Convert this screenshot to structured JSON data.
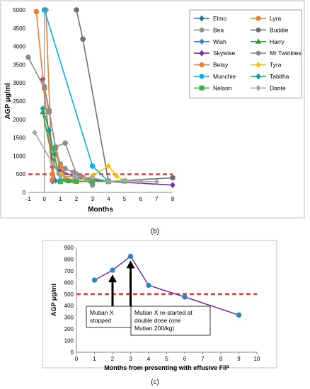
{
  "chart_data": [
    {
      "type": "line",
      "panel_label": "(b)",
      "xlabel": "Months",
      "ylabel": "AGP μg/ml",
      "xlim": [
        -1,
        8
      ],
      "ylim": [
        0,
        5000
      ],
      "x_ticks": [
        -1,
        0,
        1,
        2,
        3,
        4,
        5,
        6,
        7,
        8
      ],
      "y_ticks": [
        0,
        500,
        1000,
        1500,
        2000,
        2500,
        3000,
        3500,
        4000,
        4500,
        5000
      ],
      "grid": false,
      "legend": "top-right",
      "reference_line": {
        "y": 500,
        "color": "#e8261f",
        "style": "dashed"
      },
      "series": [
        {
          "name": "Elmo",
          "color": "#2e6da4",
          "marker": "diamond",
          "points": [
            [
              0.5,
              300
            ],
            [
              1,
              300
            ],
            [
              4,
              300
            ]
          ]
        },
        {
          "name": "Lyra",
          "color": "#ed7d31",
          "marker": "circle",
          "points": [
            [
              0.1,
              5000
            ],
            [
              0.5,
              350
            ],
            [
              1,
              300
            ],
            [
              1.5,
              320
            ],
            [
              2,
              310
            ]
          ]
        },
        {
          "name": "Bea",
          "color": "#909090",
          "marker": "circle",
          "points": [
            [
              0,
              2900
            ],
            [
              0.3,
              2250
            ],
            [
              0.7,
              1200
            ],
            [
              1,
              780
            ],
            [
              1.3,
              650
            ],
            [
              1.8,
              550
            ],
            [
              2.4,
              420
            ],
            [
              4,
              320
            ]
          ]
        },
        {
          "name": "Buddie",
          "color": "#707070",
          "marker": "circle",
          "points": [
            [
              2,
              5000
            ],
            [
              2.4,
              4200
            ],
            [
              4,
              300
            ],
            [
              8,
              400
            ]
          ]
        },
        {
          "name": "Wish",
          "color": "#2e86c1",
          "marker": "diamond",
          "points": [
            [
              0.5,
              700
            ],
            [
              0.7,
              320
            ],
            [
              1,
              300
            ]
          ]
        },
        {
          "name": "Harry",
          "color": "#3a9d3a",
          "marker": "triangle",
          "points": [
            [
              -0.1,
              2200
            ],
            [
              0.5,
              900
            ],
            [
              1,
              350
            ],
            [
              1.5,
              310
            ]
          ]
        },
        {
          "name": "Skywise",
          "color": "#7030a0",
          "marker": "diamond",
          "points": [
            [
              -0.1,
              3100
            ],
            [
              0.5,
              700
            ],
            [
              1,
              600
            ],
            [
              2,
              400
            ],
            [
              4,
              300
            ],
            [
              8,
              200
            ]
          ]
        },
        {
          "name": "Mr Twinkles",
          "color": "#8c8c8c",
          "marker": "circle",
          "points": [
            [
              -1,
              3700
            ],
            [
              0,
              2850
            ],
            [
              0.3,
              2200
            ],
            [
              0.7,
              1250
            ],
            [
              1.3,
              1350
            ],
            [
              2,
              500
            ],
            [
              3,
              200
            ]
          ]
        },
        {
          "name": "Betsy",
          "color": "#ed7d31",
          "marker": "circle",
          "points": [
            [
              -0.5,
              4950
            ],
            [
              0.5,
              500
            ],
            [
              0.7,
              1050
            ],
            [
              1,
              700
            ],
            [
              1.3,
              350
            ],
            [
              1.8,
              320
            ]
          ]
        },
        {
          "name": "Tyra",
          "color": "#ffc000",
          "marker": "diamond",
          "points": [
            [
              1,
              500
            ],
            [
              2,
              300
            ],
            [
              3,
              450
            ],
            [
              4,
              720
            ],
            [
              4.5,
              450
            ],
            [
              5,
              300
            ]
          ]
        },
        {
          "name": "Munchie",
          "color": "#00b0f0",
          "marker": "circle",
          "points": [
            [
              0,
              5000
            ],
            [
              3,
              720
            ],
            [
              4,
              300
            ]
          ]
        },
        {
          "name": "Tabitha",
          "color": "#00a39a",
          "marker": "diamond",
          "points": [
            [
              -0.1,
              2300
            ],
            [
              0.3,
              1700
            ],
            [
              0.6,
              1050
            ],
            [
              1,
              350
            ],
            [
              2,
              320
            ]
          ]
        },
        {
          "name": "Nelson",
          "color": "#3cb44b",
          "marker": "square",
          "points": [
            [
              0.5,
              1200
            ],
            [
              1,
              300
            ],
            [
              2,
              300
            ],
            [
              3,
              310
            ],
            [
              4,
              300
            ],
            [
              5,
              310
            ]
          ]
        },
        {
          "name": "Dante",
          "color": "#a6a6a6",
          "marker": "diamond",
          "points": [
            [
              -0.6,
              1640
            ],
            [
              0.5,
              800
            ],
            [
              1,
              450
            ],
            [
              2,
              420
            ],
            [
              3,
              400
            ],
            [
              4,
              300
            ],
            [
              5,
              320
            ],
            [
              6,
              300
            ],
            [
              7,
              290
            ]
          ]
        }
      ]
    },
    {
      "type": "line",
      "panel_label": "(c)",
      "xlabel": "Months from presenting with effusive FIP",
      "ylabel": "AGP μg/ml",
      "xlim": [
        0,
        10
      ],
      "ylim": [
        0,
        900
      ],
      "x_ticks": [
        0,
        1,
        2,
        3,
        4,
        5,
        6,
        7,
        8,
        9,
        10
      ],
      "y_ticks": [
        0,
        100,
        200,
        300,
        400,
        500,
        600,
        700,
        800,
        900
      ],
      "grid": false,
      "reference_line": {
        "y": 500,
        "color": "#e8261f",
        "style": "dashed"
      },
      "series": [
        {
          "color": "#7030a0",
          "marker_color": "#2e86c1",
          "x": [
            1,
            2,
            3,
            4,
            6,
            9
          ],
          "y": [
            620,
            705,
            825,
            575,
            475,
            320
          ]
        }
      ],
      "annotations": [
        {
          "text": "Mutian X stopped",
          "arrow_to_x": 2,
          "arrow_to_y": 705
        },
        {
          "text": "Mutian X re-started at double dose (one Mutian 200/kg)",
          "arrow_to_x": 3,
          "arrow_to_y": 825
        }
      ]
    }
  ]
}
